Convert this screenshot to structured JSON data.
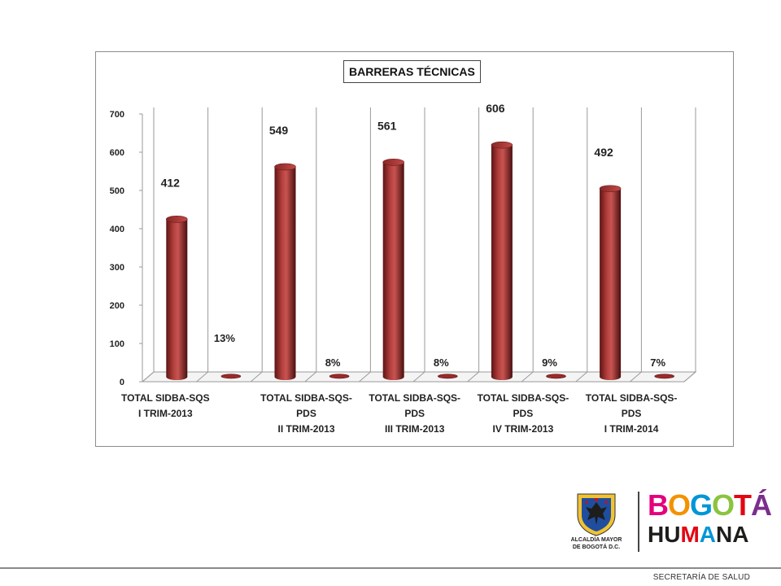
{
  "chart_data": {
    "type": "bar",
    "title": "BARRERAS TÉCNICAS",
    "categories": [
      [
        "TOTAL SIDBA-SQS",
        "I TRIM-2013"
      ],
      [
        "TOTAL SIDBA-SQS-",
        "PDS",
        "II TRIM-2013"
      ],
      [
        "TOTAL SIDBA-SQS-",
        "PDS",
        "III TRIM-2013"
      ],
      [
        "TOTAL SIDBA-SQS-",
        "PDS",
        "IV TRIM-2013"
      ],
      [
        "TOTAL SIDBA-SQS-",
        "PDS",
        "I TRIM-2014"
      ]
    ],
    "series": [
      {
        "values": [
          412,
          549,
          561,
          606,
          492
        ],
        "labels": [
          "412",
          "549",
          "561",
          "606",
          "492"
        ]
      },
      {
        "values": [
          0.13,
          0.08,
          0.08,
          0.09,
          0.07
        ],
        "labels": [
          "13%",
          "8%",
          "8%",
          "9%",
          "7%"
        ]
      }
    ],
    "ylim": [
      0,
      700
    ],
    "yticks": [
      "0",
      "100",
      "200",
      "300",
      "400",
      "500",
      "600",
      "700"
    ],
    "grid": true,
    "bar_color": "#9b2a2a"
  },
  "footer": {
    "text": "SECRETARÍA DE SALUD"
  },
  "logos": {
    "alcaldia_line1": "ALCALDÍA MAYOR",
    "alcaldia_line2": "DE BOGOTÁ D.C.",
    "brand_line1_letters": [
      "B",
      "O",
      "G",
      "O",
      "T",
      "Á"
    ],
    "brand_line1_colors": [
      "#e4007c",
      "#f39200",
      "#0096d6",
      "#8ac43f",
      "#e30613",
      "#7b2d8e"
    ],
    "brand_line2_letters": [
      "H",
      "U",
      "M",
      "A",
      "N",
      "A"
    ],
    "brand_line2_colors": [
      "#1d1d1b",
      "#1d1d1b",
      "#e30613",
      "#0096d6",
      "#1d1d1b",
      "#1d1d1b"
    ]
  }
}
